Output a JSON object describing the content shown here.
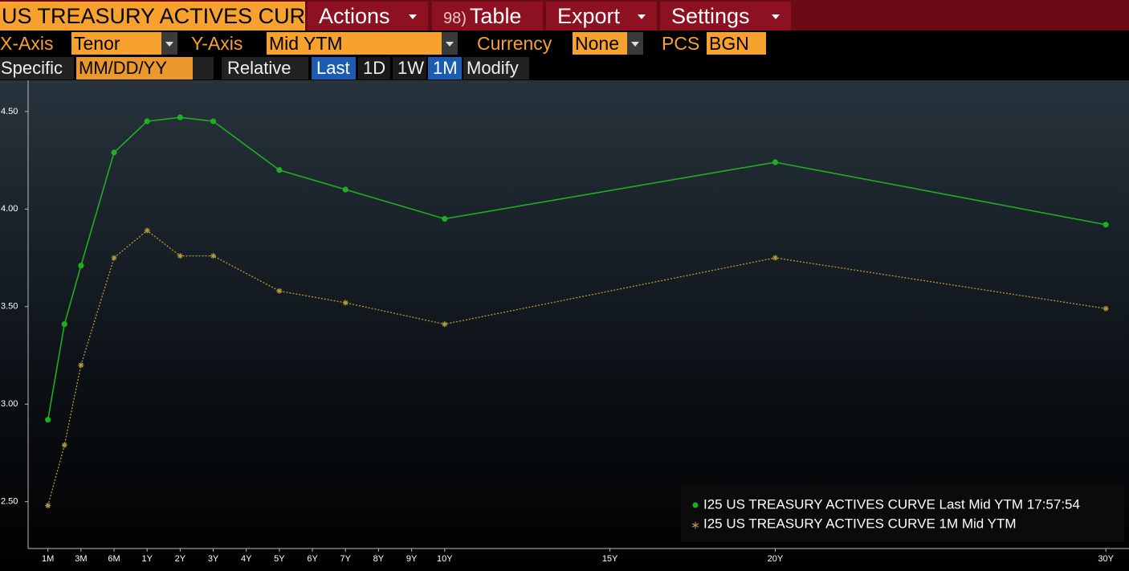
{
  "toolbar": {
    "title": "US TREASURY ACTIVES CURV",
    "table_code": "98)",
    "menus": [
      "Actions",
      "Table",
      "Export",
      "Settings"
    ]
  },
  "fields": [
    {
      "label": "X-Axis",
      "value": "Tenor"
    },
    {
      "label": "Y-Axis",
      "value": "Mid YTM"
    },
    {
      "label": "Currency",
      "value": "None"
    },
    {
      "label": "PCS",
      "value": "BGN"
    }
  ],
  "date_row": {
    "specific_label": "Specific",
    "date_placeholder": "MM/DD/YY",
    "relative_label": "Relative",
    "buttons": [
      "Last",
      "1D",
      "1W",
      "1M"
    ],
    "modify": "Modify"
  },
  "chart_data": {
    "type": "line",
    "x": [
      0,
      0.5,
      1,
      2,
      3,
      4,
      5,
      7,
      9,
      12,
      22,
      32
    ],
    "xlim": [
      -0.6,
      32.7
    ],
    "xticks": [
      {
        "value": 0,
        "label": "1M"
      },
      {
        "value": 1,
        "label": "3M"
      },
      {
        "value": 2,
        "label": "6M"
      },
      {
        "value": 3,
        "label": "1Y"
      },
      {
        "value": 4,
        "label": "2Y"
      },
      {
        "value": 5,
        "label": "3Y"
      },
      {
        "value": 6,
        "label": "4Y"
      },
      {
        "value": 7,
        "label": "5Y"
      },
      {
        "value": 8,
        "label": "6Y"
      },
      {
        "value": 9,
        "label": "7Y"
      },
      {
        "value": 10,
        "label": "8Y"
      },
      {
        "value": 11,
        "label": "9Y"
      },
      {
        "value": 12,
        "label": "10Y"
      },
      {
        "value": 17,
        "label": "15Y"
      },
      {
        "value": 22,
        "label": "20Y"
      },
      {
        "value": 32,
        "label": "30Y"
      }
    ],
    "ylim": [
      2.26,
      4.66
    ],
    "yticks": [
      {
        "value": 2.5,
        "label": "2.50"
      },
      {
        "value": 3,
        "label": "3.00"
      },
      {
        "value": 3.5,
        "label": "3.50"
      },
      {
        "value": 4,
        "label": "4.00"
      },
      {
        "value": 4.5,
        "label": "4.50"
      }
    ],
    "legend": "bottom-right",
    "series": [
      {
        "name": "I25 US TREASURY ACTIVES CURVE Last Mid YTM 17:57:54",
        "color": "#1fae1f",
        "marker": "circle",
        "linestyle": "solid",
        "values": [
          2.92,
          3.41,
          3.71,
          4.29,
          4.45,
          4.47,
          4.45,
          4.2,
          4.1,
          3.95,
          4.24,
          3.92
        ]
      },
      {
        "name": "I25 US TREASURY ACTIVES CURVE 1M Mid YTM",
        "color": "#b59a3a",
        "marker": "asterisk",
        "linestyle": "dotted",
        "values": [
          2.48,
          2.79,
          3.2,
          3.75,
          3.89,
          3.76,
          3.76,
          3.58,
          3.52,
          3.41,
          3.75,
          3.49
        ]
      }
    ]
  }
}
